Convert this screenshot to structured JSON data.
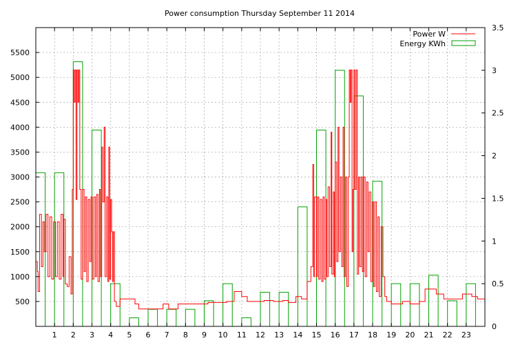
{
  "chart_data": {
    "type": "bar",
    "title": "Power consumption Thursday September 11 2014",
    "xlabel": "",
    "ylabel": "",
    "y2label": "",
    "xlim": [
      0,
      24
    ],
    "ylim": [
      0,
      6000
    ],
    "y2lim": [
      0,
      3.5
    ],
    "x_ticks": [
      1,
      2,
      3,
      4,
      5,
      6,
      7,
      8,
      9,
      10,
      11,
      12,
      13,
      14,
      15,
      16,
      17,
      18,
      19,
      20,
      21,
      22,
      23
    ],
    "y_ticks": [
      500,
      1000,
      1500,
      2000,
      2500,
      3000,
      3500,
      4000,
      4500,
      5000,
      5500
    ],
    "y2_ticks": [
      "0",
      "0.5",
      "1",
      "1.5",
      "2",
      "2.5",
      "3",
      "3.5"
    ],
    "y2_tick_values": [
      0,
      0.5,
      1,
      1.5,
      2,
      2.5,
      3,
      3.5
    ],
    "grid": true,
    "legend_position": "top-right",
    "series": [
      {
        "name": "Power W",
        "type": "line",
        "axis": "left",
        "color": "#ff0000",
        "points": [
          [
            0.0,
            1300
          ],
          [
            0.08,
            1100
          ],
          [
            0.12,
            700
          ],
          [
            0.2,
            2250
          ],
          [
            0.3,
            1200
          ],
          [
            0.38,
            2100
          ],
          [
            0.45,
            1500
          ],
          [
            0.55,
            2250
          ],
          [
            0.65,
            1000
          ],
          [
            0.75,
            2200
          ],
          [
            0.85,
            950
          ],
          [
            0.95,
            2100
          ],
          [
            1.05,
            1000
          ],
          [
            1.15,
            2100
          ],
          [
            1.25,
            950
          ],
          [
            1.35,
            2250
          ],
          [
            1.45,
            1000
          ],
          [
            1.5,
            2150
          ],
          [
            1.58,
            850
          ],
          [
            1.68,
            800
          ],
          [
            1.78,
            1400
          ],
          [
            1.88,
            650
          ],
          [
            1.95,
            2750
          ],
          [
            2.0,
            5150
          ],
          [
            2.05,
            4500
          ],
          [
            2.1,
            5150
          ],
          [
            2.15,
            2550
          ],
          [
            2.2,
            5150
          ],
          [
            2.25,
            4500
          ],
          [
            2.3,
            5150
          ],
          [
            2.35,
            2750
          ],
          [
            2.42,
            950
          ],
          [
            2.5,
            2750
          ],
          [
            2.58,
            1100
          ],
          [
            2.65,
            2600
          ],
          [
            2.72,
            900
          ],
          [
            2.8,
            2550
          ],
          [
            2.88,
            1300
          ],
          [
            2.95,
            2600
          ],
          [
            3.02,
            950
          ],
          [
            3.1,
            2600
          ],
          [
            3.18,
            1000
          ],
          [
            3.25,
            2650
          ],
          [
            3.32,
            900
          ],
          [
            3.4,
            2750
          ],
          [
            3.45,
            1000
          ],
          [
            3.52,
            3600
          ],
          [
            3.58,
            2500
          ],
          [
            3.65,
            4000
          ],
          [
            3.7,
            1000
          ],
          [
            3.78,
            2600
          ],
          [
            3.85,
            900
          ],
          [
            3.9,
            3600
          ],
          [
            3.95,
            950
          ],
          [
            4.0,
            2550
          ],
          [
            4.05,
            1900
          ],
          [
            4.1,
            900
          ],
          [
            4.15,
            1900
          ],
          [
            4.2,
            500
          ],
          [
            4.3,
            400
          ],
          [
            4.5,
            550
          ],
          [
            5.3,
            450
          ],
          [
            5.5,
            350
          ],
          [
            6.8,
            450
          ],
          [
            7.1,
            350
          ],
          [
            7.6,
            450
          ],
          [
            8.8,
            450
          ],
          [
            9.2,
            480
          ],
          [
            10.2,
            500
          ],
          [
            10.6,
            700
          ],
          [
            11.0,
            600
          ],
          [
            11.3,
            500
          ],
          [
            12.2,
            520
          ],
          [
            12.7,
            500
          ],
          [
            13.2,
            520
          ],
          [
            13.5,
            480
          ],
          [
            13.9,
            600
          ],
          [
            14.2,
            550
          ],
          [
            14.5,
            900
          ],
          [
            14.7,
            1200
          ],
          [
            14.8,
            3250
          ],
          [
            14.85,
            1000
          ],
          [
            14.9,
            2600
          ],
          [
            15.0,
            1000
          ],
          [
            15.05,
            2600
          ],
          [
            15.12,
            950
          ],
          [
            15.2,
            2550
          ],
          [
            15.28,
            900
          ],
          [
            15.35,
            2600
          ],
          [
            15.42,
            950
          ],
          [
            15.5,
            2550
          ],
          [
            15.55,
            1000
          ],
          [
            15.62,
            2800
          ],
          [
            15.7,
            1200
          ],
          [
            15.78,
            3900
          ],
          [
            15.82,
            1050
          ],
          [
            15.9,
            2700
          ],
          [
            15.95,
            1000
          ],
          [
            16.0,
            3300
          ],
          [
            16.08,
            1300
          ],
          [
            16.15,
            4000
          ],
          [
            16.2,
            1500
          ],
          [
            16.28,
            3000
          ],
          [
            16.35,
            1200
          ],
          [
            16.42,
            4000
          ],
          [
            16.48,
            1000
          ],
          [
            16.55,
            3000
          ],
          [
            16.62,
            800
          ],
          [
            16.7,
            3000
          ],
          [
            16.75,
            5150
          ],
          [
            16.8,
            4500
          ],
          [
            16.85,
            5150
          ],
          [
            16.9,
            1500
          ],
          [
            16.95,
            2750
          ],
          [
            17.0,
            5150
          ],
          [
            17.05,
            2750
          ],
          [
            17.12,
            5150
          ],
          [
            17.18,
            1050
          ],
          [
            17.25,
            3000
          ],
          [
            17.3,
            1200
          ],
          [
            17.38,
            3000
          ],
          [
            17.45,
            1100
          ],
          [
            17.52,
            3000
          ],
          [
            17.6,
            1000
          ],
          [
            17.68,
            2900
          ],
          [
            17.75,
            1500
          ],
          [
            17.82,
            2700
          ],
          [
            17.9,
            900
          ],
          [
            17.98,
            2500
          ],
          [
            18.05,
            800
          ],
          [
            18.12,
            2500
          ],
          [
            18.2,
            700
          ],
          [
            18.28,
            2200
          ],
          [
            18.35,
            600
          ],
          [
            18.45,
            2000
          ],
          [
            18.55,
            1000
          ],
          [
            18.65,
            600
          ],
          [
            18.75,
            500
          ],
          [
            19.0,
            450
          ],
          [
            19.6,
            500
          ],
          [
            20.0,
            450
          ],
          [
            20.5,
            500
          ],
          [
            20.8,
            750
          ],
          [
            21.4,
            650
          ],
          [
            21.8,
            550
          ],
          [
            22.5,
            550
          ],
          [
            22.8,
            650
          ],
          [
            23.3,
            600
          ],
          [
            23.6,
            550
          ],
          [
            24.0,
            650
          ]
        ]
      },
      {
        "name": "Energy KWh",
        "type": "bar",
        "axis": "right",
        "color": "#00a000",
        "x": [
          0,
          1,
          2,
          3,
          4,
          5,
          6,
          7,
          8,
          9,
          10,
          11,
          12,
          13,
          14,
          15,
          16,
          17,
          18,
          19,
          20,
          21,
          22,
          23
        ],
        "values": [
          1.8,
          1.8,
          3.1,
          2.3,
          0.5,
          0.1,
          0.2,
          0.2,
          0.2,
          0.3,
          0.5,
          0.1,
          0.4,
          0.4,
          1.4,
          2.3,
          3.0,
          2.7,
          1.7,
          0.5,
          0.5,
          0.6,
          0.3,
          0.5
        ]
      }
    ]
  }
}
